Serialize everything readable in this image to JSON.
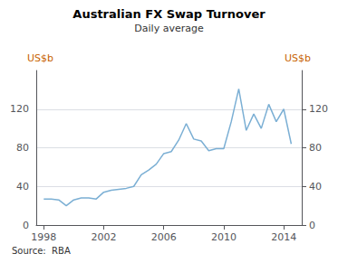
{
  "chart_data": {
    "type": "line",
    "title": "Australian FX Swap Turnover",
    "subtitle": "Daily average",
    "y_label": "US$b",
    "y2_label": "US$b",
    "source": "Source:  RBA",
    "color": "#7bafd4",
    "x": [
      1998.0,
      1998.5,
      1999.0,
      1999.5,
      2000.0,
      2000.5,
      2001.0,
      2001.5,
      2002.0,
      2002.5,
      2003.0,
      2003.5,
      2004.0,
      2004.5,
      2005.0,
      2005.5,
      2006.0,
      2006.5,
      2007.0,
      2007.5,
      2008.0,
      2008.5,
      2009.0,
      2009.5,
      2010.0,
      2010.5,
      2011.0,
      2011.5,
      2012.0,
      2012.5,
      2013.0,
      2013.5,
      2014.0,
      2014.5
    ],
    "values": [
      27,
      27,
      26,
      20,
      26,
      28,
      28,
      27,
      34,
      36,
      37,
      38,
      40,
      52,
      57,
      63,
      74,
      76,
      88,
      105,
      89,
      87,
      77,
      79,
      79,
      107,
      141,
      98,
      115,
      100,
      125,
      107,
      120,
      84
    ],
    "xlim": [
      1997.5,
      2015.2
    ],
    "xticks": [
      1998,
      2002,
      2006,
      2010,
      2014
    ],
    "ylim": [
      0,
      160
    ],
    "yticks": [
      0,
      40,
      80,
      120
    ],
    "y2lim": [
      0,
      160
    ],
    "y2ticks": [
      0,
      40,
      80,
      120
    ],
    "grid": true
  }
}
